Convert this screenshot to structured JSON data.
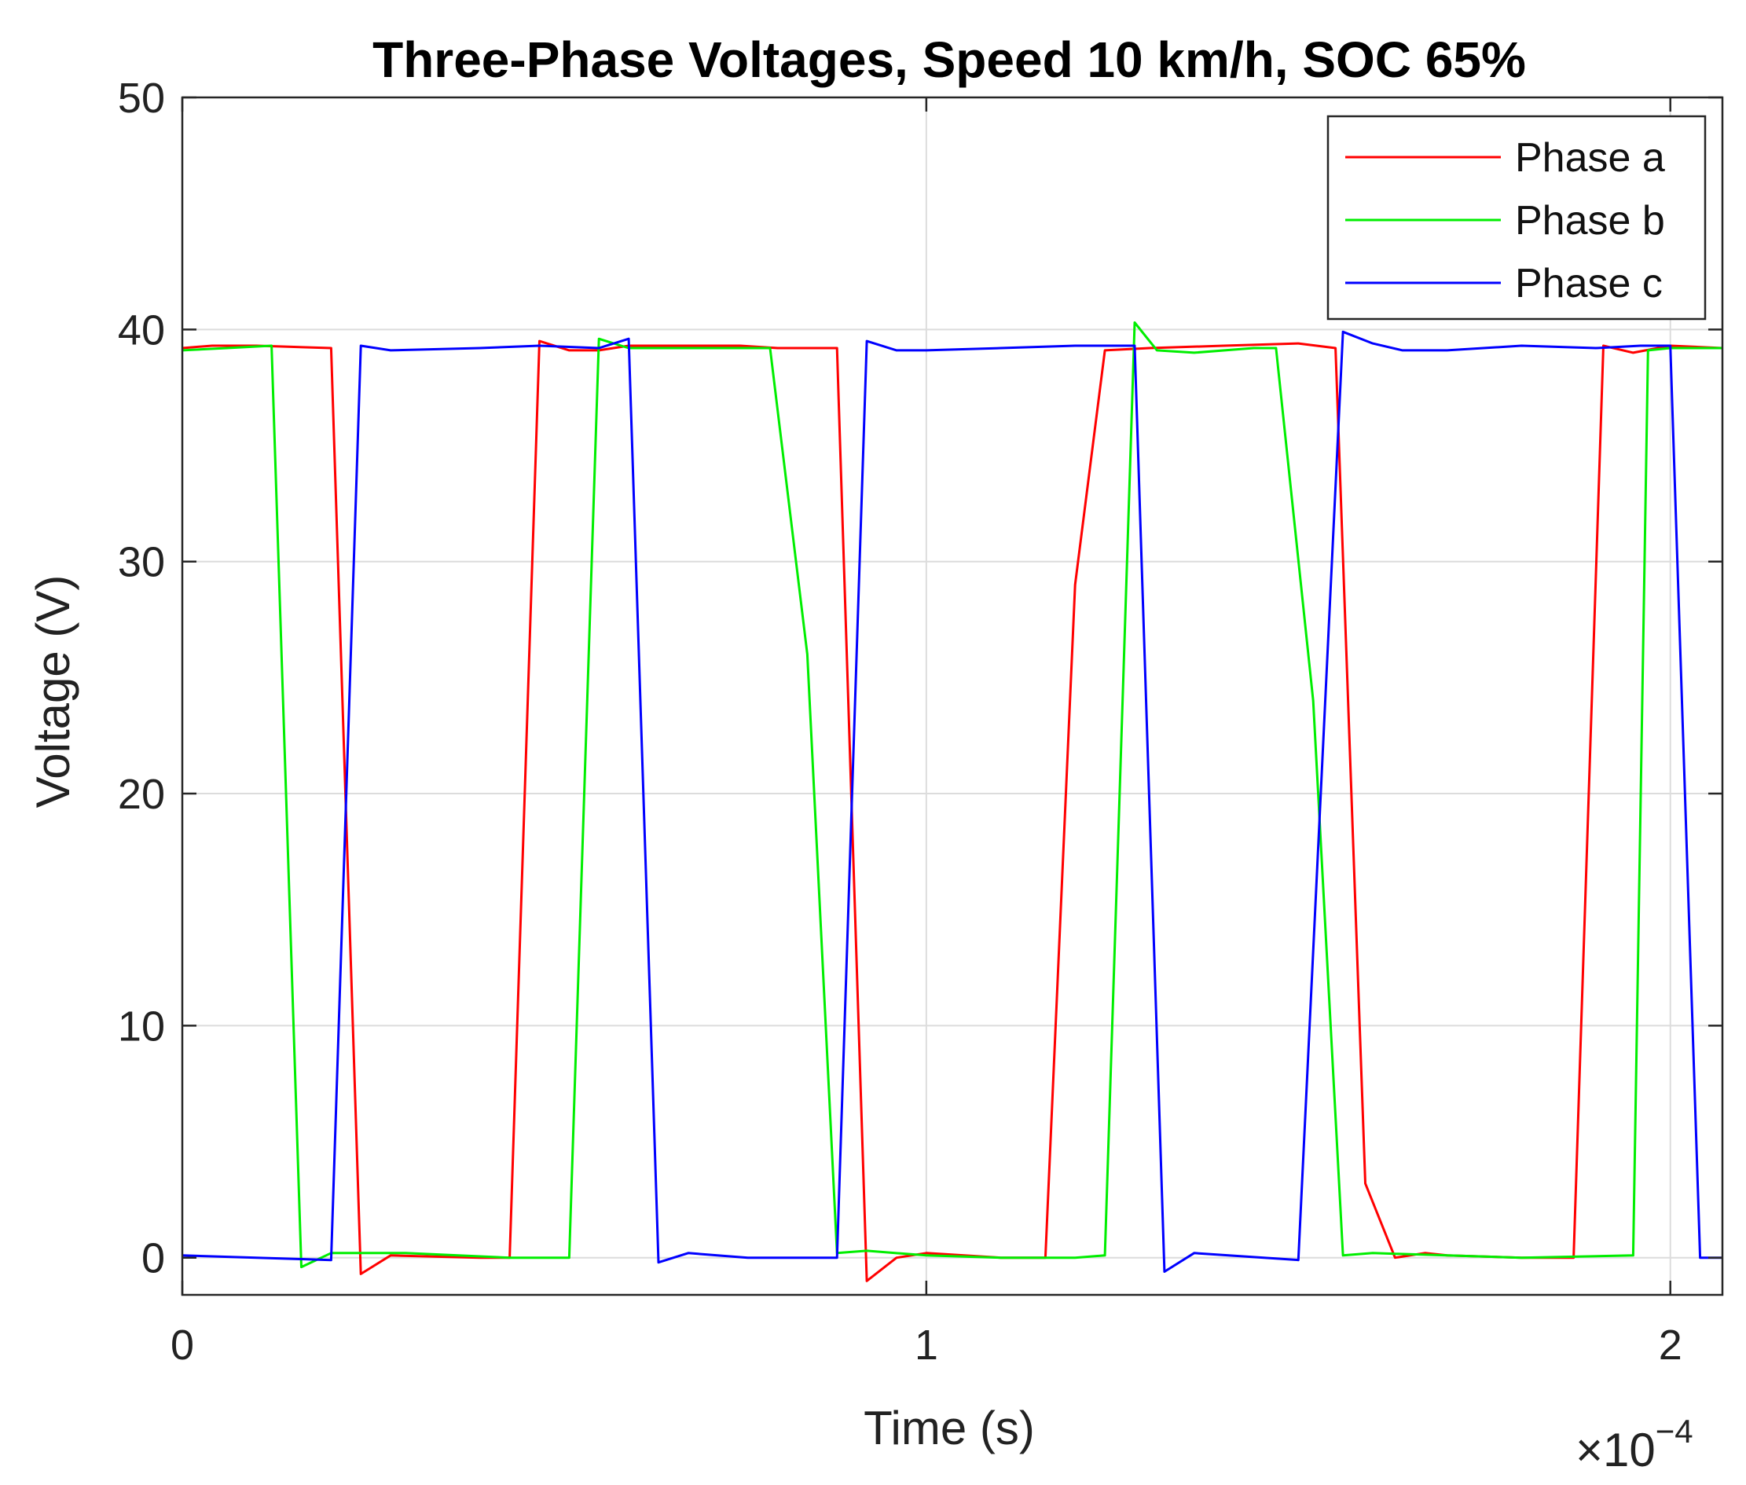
{
  "chart_data": {
    "type": "line",
    "title": "Three-Phase Voltages, Speed 10 km/h, SOC 65%",
    "xlabel": "Time (s)",
    "ylabel": "Voltage (V)",
    "x_exponent_label": "×10",
    "x_exponent_power": "−4",
    "xlim": [
      0,
      2.07
    ],
    "ylim": [
      -1.6,
      50
    ],
    "x_ticks": [
      0,
      1,
      2
    ],
    "x_tick_labels": [
      "0",
      "1",
      "2"
    ],
    "y_ticks": [
      0,
      10,
      20,
      30,
      40,
      50
    ],
    "y_tick_labels": [
      "0",
      "10",
      "20",
      "30",
      "40",
      "50"
    ],
    "x_scale_note": "x values in units of 1e-4 s",
    "grid": true,
    "legend_position": "top-right",
    "series": [
      {
        "name": "Phase a",
        "color": "#ff0000",
        "x": [
          0,
          0.04,
          0.1,
          0.2,
          0.24,
          0.28,
          0.4,
          0.44,
          0.48,
          0.52,
          0.56,
          0.6,
          0.75,
          0.8,
          0.88,
          0.92,
          0.96,
          1.0,
          1.1,
          1.16,
          1.2,
          1.24,
          1.3,
          1.4,
          1.5,
          1.55,
          1.59,
          1.63,
          1.67,
          1.7,
          1.8,
          1.87,
          1.91,
          1.95,
          2.0,
          2.07
        ],
        "y": [
          39.2,
          39.3,
          39.3,
          39.2,
          -0.7,
          0.1,
          0.0,
          0.0,
          39.5,
          39.1,
          39.1,
          39.3,
          39.3,
          39.2,
          39.2,
          -1.0,
          0.0,
          0.2,
          0.0,
          0.0,
          29.0,
          39.1,
          39.2,
          39.3,
          39.4,
          39.2,
          3.2,
          0.0,
          0.2,
          0.1,
          0.0,
          0.0,
          39.3,
          39.0,
          39.3,
          39.2
        ]
      },
      {
        "name": "Phase b",
        "color": "#00ee00",
        "x": [
          0,
          0.06,
          0.12,
          0.16,
          0.2,
          0.3,
          0.44,
          0.52,
          0.56,
          0.6,
          0.64,
          0.79,
          0.84,
          0.88,
          0.92,
          1.0,
          1.1,
          1.2,
          1.24,
          1.28,
          1.31,
          1.36,
          1.44,
          1.47,
          1.52,
          1.56,
          1.6,
          1.7,
          1.8,
          1.95,
          1.97,
          2.0,
          2.07
        ],
        "y": [
          39.1,
          39.2,
          39.3,
          -0.4,
          0.2,
          0.2,
          0.0,
          0.0,
          39.6,
          39.2,
          39.2,
          39.2,
          26.0,
          0.2,
          0.3,
          0.1,
          0.0,
          0.0,
          0.1,
          40.3,
          39.1,
          39.0,
          39.2,
          39.2,
          24.0,
          0.1,
          0.2,
          0.1,
          0.0,
          0.1,
          39.1,
          39.2,
          39.2
        ]
      },
      {
        "name": "Phase c",
        "color": "#0000ff",
        "x": [
          0,
          0.1,
          0.2,
          0.24,
          0.28,
          0.4,
          0.48,
          0.56,
          0.6,
          0.64,
          0.68,
          0.76,
          0.88,
          0.92,
          0.96,
          1.0,
          1.1,
          1.2,
          1.28,
          1.32,
          1.36,
          1.5,
          1.56,
          1.6,
          1.64,
          1.7,
          1.8,
          1.9,
          1.96,
          2.0,
          2.04,
          2.07
        ],
        "y": [
          0.1,
          0.0,
          -0.1,
          39.3,
          39.1,
          39.2,
          39.3,
          39.2,
          39.6,
          -0.2,
          0.2,
          0.0,
          0.0,
          39.5,
          39.1,
          39.1,
          39.2,
          39.3,
          39.3,
          -0.6,
          0.2,
          -0.1,
          39.9,
          39.4,
          39.1,
          39.1,
          39.3,
          39.2,
          39.3,
          39.3,
          0.0,
          0.0
        ]
      }
    ]
  }
}
